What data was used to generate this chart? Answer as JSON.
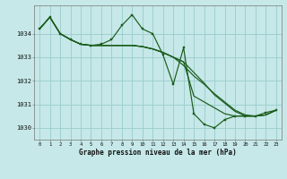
{
  "title": "Graphe pression niveau de la mer (hPa)",
  "hours": [
    0,
    1,
    2,
    3,
    4,
    5,
    6,
    7,
    8,
    9,
    10,
    11,
    12,
    13,
    14,
    15,
    16,
    17,
    18,
    19,
    20,
    21,
    22,
    23
  ],
  "ylim": [
    1029.5,
    1035.2
  ],
  "yticks": [
    1030,
    1031,
    1032,
    1033,
    1034
  ],
  "background_color": "#c6e8e8",
  "grid_color": "#99cccc",
  "line_color": "#1a5c1a",
  "series1": [
    1034.2,
    1034.7,
    1034.0,
    1033.75,
    1033.55,
    1033.5,
    1033.55,
    1033.75,
    1034.35,
    1034.8,
    1034.2,
    1034.0,
    1033.1,
    1031.85,
    1033.4,
    1030.6,
    1030.15,
    1030.0,
    1030.35,
    1030.5,
    1030.5,
    1030.5,
    1030.65,
    1030.75
  ],
  "series2": [
    1034.2,
    1034.7,
    1034.0,
    1033.75,
    1033.55,
    1033.5,
    1033.5,
    1033.5,
    1033.5,
    1033.5,
    1033.45,
    1033.35,
    1033.2,
    1033.0,
    1032.65,
    1032.2,
    1031.85,
    1031.45,
    1031.1,
    1030.75,
    1030.55,
    1030.5,
    1030.55,
    1030.75
  ],
  "series3": [
    1034.2,
    1034.7,
    1034.0,
    1033.75,
    1033.55,
    1033.5,
    1033.5,
    1033.5,
    1033.5,
    1033.5,
    1033.45,
    1033.35,
    1033.2,
    1033.0,
    1032.8,
    1032.35,
    1031.9,
    1031.4,
    1031.05,
    1030.7,
    1030.5,
    1030.5,
    1030.55,
    1030.75
  ],
  "series4": [
    1034.2,
    1034.7,
    1034.0,
    1033.75,
    1033.55,
    1033.5,
    1033.5,
    1033.5,
    1033.5,
    1033.5,
    1033.45,
    1033.35,
    1033.2,
    1033.0,
    1032.8,
    1031.35,
    1031.1,
    1030.85,
    1030.6,
    1030.5,
    1030.5,
    1030.5,
    1030.55,
    1030.75
  ]
}
